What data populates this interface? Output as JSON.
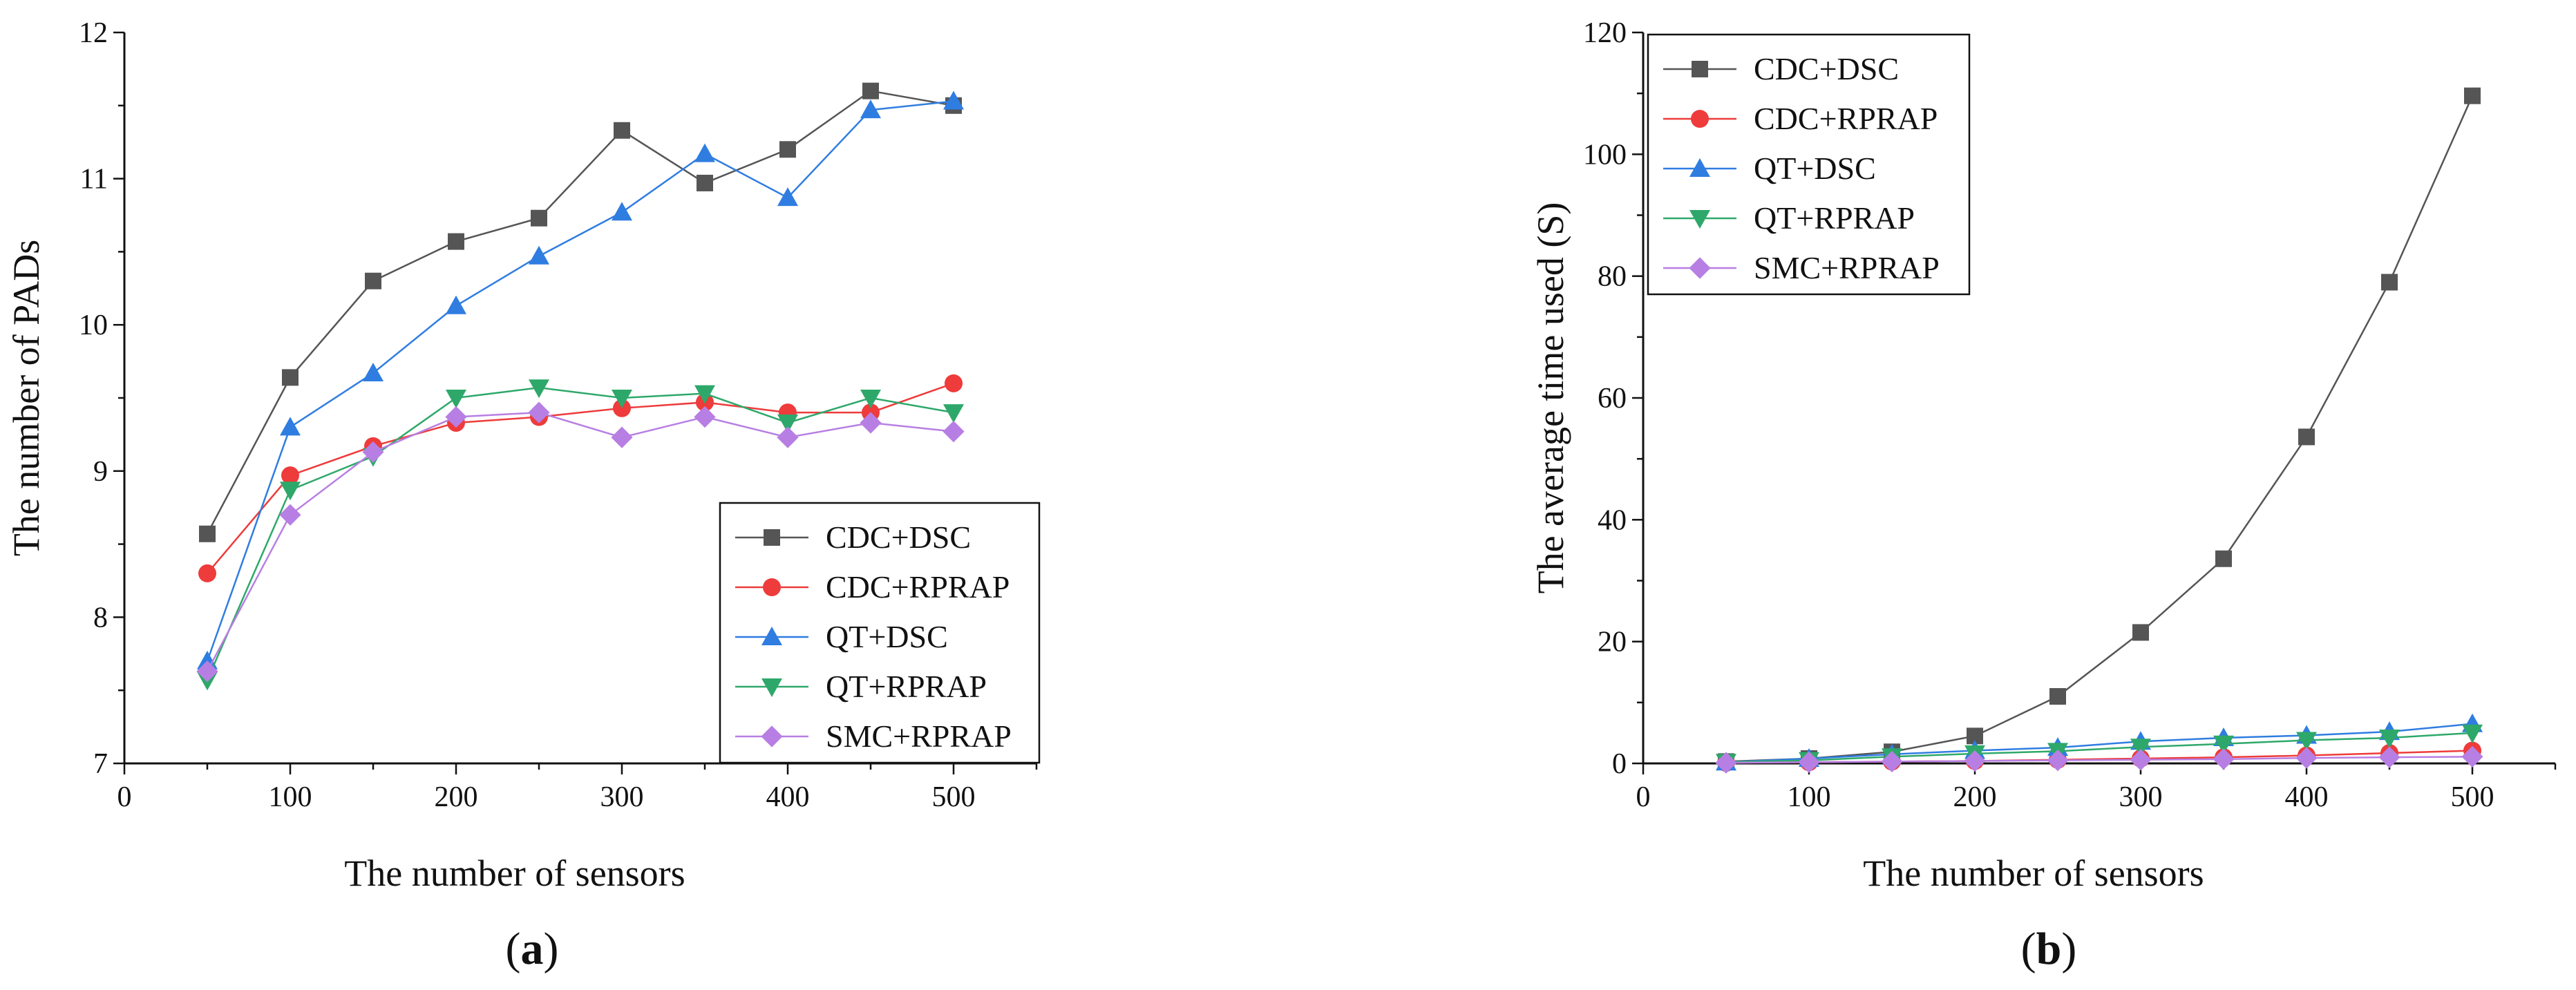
{
  "colors": {
    "CDC+DSC": "#555555",
    "CDC+RPRAP": "#ee3b3b",
    "QT+DSC": "#2f7de1",
    "QT+RPRAP": "#2ea86a",
    "SMC+RPRAP": "#b77fe3"
  },
  "chart_data": [
    {
      "type": "line",
      "panel_label": "a",
      "title": "",
      "xlabel": "The number of sensors",
      "ylabel": "The number of PADs",
      "xlim": [
        0,
        550
      ],
      "ylim": [
        7,
        12
      ],
      "xticks": [
        0,
        100,
        200,
        300,
        400,
        500
      ],
      "yticks": [
        7,
        8,
        9,
        10,
        11,
        12
      ],
      "legend_position": "bottom-right",
      "x": [
        50,
        100,
        150,
        200,
        250,
        300,
        350,
        400,
        450,
        500
      ],
      "series": [
        {
          "name": "CDC+DSC",
          "marker": "square",
          "values": [
            8.57,
            9.64,
            10.3,
            10.57,
            10.73,
            11.33,
            10.97,
            11.2,
            11.6,
            11.5
          ]
        },
        {
          "name": "CDC+RPRAP",
          "marker": "circle",
          "values": [
            8.3,
            8.97,
            9.17,
            9.33,
            9.37,
            9.43,
            9.47,
            9.4,
            9.4,
            9.6
          ]
        },
        {
          "name": "QT+DSC",
          "marker": "triangle-up",
          "values": [
            7.7,
            9.3,
            9.67,
            10.13,
            10.47,
            10.77,
            11.17,
            10.87,
            11.47,
            11.53
          ]
        },
        {
          "name": "QT+RPRAP",
          "marker": "triangle-down",
          "values": [
            7.57,
            8.87,
            9.1,
            9.5,
            9.57,
            9.5,
            9.53,
            9.33,
            9.5,
            9.4
          ]
        },
        {
          "name": "SMC+RPRAP",
          "marker": "diamond",
          "values": [
            7.63,
            8.7,
            9.13,
            9.37,
            9.4,
            9.23,
            9.37,
            9.23,
            9.33,
            9.27
          ]
        }
      ]
    },
    {
      "type": "line",
      "panel_label": "b",
      "title": "",
      "xlabel": "The number of sensors",
      "ylabel": "The average time used (S)",
      "xlim": [
        0,
        550
      ],
      "ylim": [
        0,
        120
      ],
      "xticks": [
        0,
        100,
        200,
        300,
        400,
        500
      ],
      "yticks": [
        0,
        20,
        40,
        60,
        80,
        100,
        120
      ],
      "legend_position": "top-left",
      "x": [
        50,
        100,
        150,
        200,
        250,
        300,
        350,
        400,
        450,
        500
      ],
      "series": [
        {
          "name": "CDC+DSC",
          "marker": "square",
          "values": [
            0.3,
            0.8,
            1.9,
            4.5,
            11,
            21.5,
            33.6,
            53.6,
            79,
            109.6
          ]
        },
        {
          "name": "CDC+RPRAP",
          "marker": "circle",
          "values": [
            0.1,
            0.2,
            0.3,
            0.4,
            0.6,
            0.8,
            1,
            1.3,
            1.7,
            2.1
          ]
        },
        {
          "name": "QT+DSC",
          "marker": "triangle-up",
          "values": [
            0.2,
            0.8,
            1.5,
            2.1,
            2.6,
            3.6,
            4.2,
            4.6,
            5.2,
            6.5
          ]
        },
        {
          "name": "QT+RPRAP",
          "marker": "triangle-down",
          "values": [
            0.2,
            0.5,
            1.1,
            1.6,
            2,
            2.7,
            3.2,
            3.8,
            4.2,
            5
          ]
        },
        {
          "name": "SMC+RPRAP",
          "marker": "diamond",
          "values": [
            0.1,
            0.2,
            0.3,
            0.4,
            0.5,
            0.6,
            0.7,
            0.9,
            1,
            1.1
          ]
        }
      ]
    }
  ]
}
